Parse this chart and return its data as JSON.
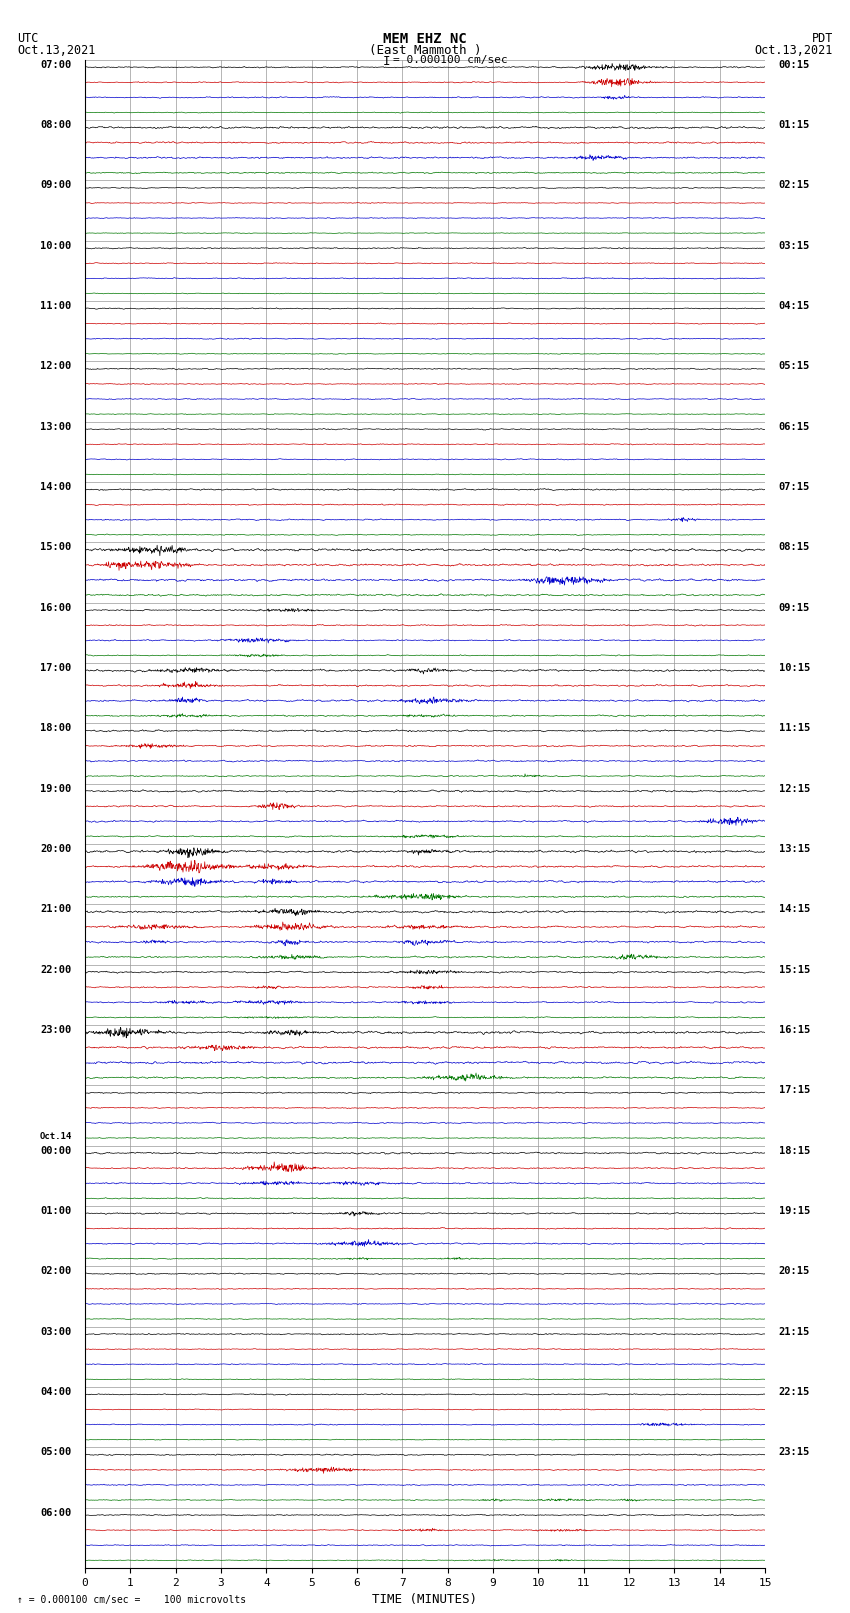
{
  "title_line1": "MEM EHZ NC",
  "title_line2": "(East Mammoth )",
  "scale_label": "= 0.000100 cm/sec",
  "bottom_label": "= 0.000100 cm/sec =    100 microvolts",
  "xlabel": "TIME (MINUTES)",
  "left_date": "Oct.13,2021",
  "right_date": "Oct.13,2021",
  "left_tz": "UTC",
  "right_tz": "PDT",
  "bg_color": "#ffffff",
  "grid_color": "#aaaaaa",
  "trace_colors": [
    "#000000",
    "#cc0000",
    "#0000cc",
    "#007700"
  ],
  "utc_times": [
    "07:00",
    "08:00",
    "09:00",
    "10:00",
    "11:00",
    "12:00",
    "13:00",
    "14:00",
    "15:00",
    "16:00",
    "17:00",
    "18:00",
    "19:00",
    "20:00",
    "21:00",
    "22:00",
    "23:00",
    "Oct.14",
    "00:00",
    "01:00",
    "02:00",
    "03:00",
    "04:00",
    "05:00",
    "06:00"
  ],
  "pdt_times": [
    "00:15",
    "01:15",
    "02:15",
    "03:15",
    "04:15",
    "05:15",
    "06:15",
    "07:15",
    "08:15",
    "09:15",
    "10:15",
    "11:15",
    "12:15",
    "13:15",
    "14:15",
    "15:15",
    "16:15",
    "17:15",
    "18:15",
    "19:15",
    "20:15",
    "21:15",
    "22:15",
    "23:15"
  ],
  "n_rows": 25,
  "traces_per_row": 4,
  "minutes": 15,
  "samples_per_minute": 100,
  "figsize": [
    8.5,
    16.13
  ],
  "dpi": 100
}
